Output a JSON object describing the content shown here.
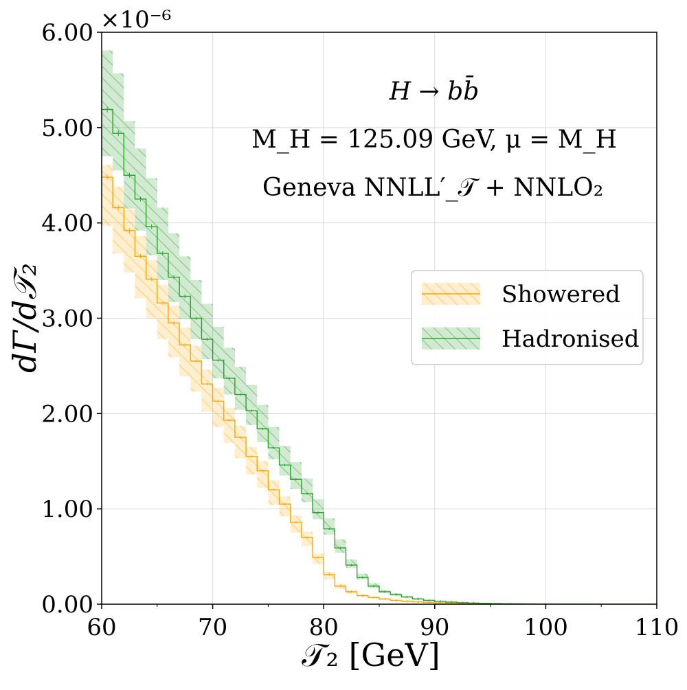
{
  "chart_data": {
    "type": "line",
    "style": "step-histogram-with-uncertainty-bands",
    "xlabel": "𝒯₂   [GeV]",
    "ylabel": "dΓ/d𝒯₂",
    "xlim": [
      60,
      110
    ],
    "ylim": [
      0,
      6.0
    ],
    "xticks": [
      60,
      70,
      80,
      90,
      100,
      110
    ],
    "xtick_labels": [
      "60",
      "70",
      "80",
      "90",
      "100",
      "110"
    ],
    "yticks": [
      0,
      1,
      2,
      3,
      4,
      5,
      6
    ],
    "ytick_labels": [
      "0.00",
      "1.00",
      "2.00",
      "3.00",
      "4.00",
      "5.00",
      "6.00"
    ],
    "y_offset_label": "×10⁻⁶",
    "grid": true,
    "legend_position": "center-right",
    "annotations": [
      "H → bb̄",
      "M_H = 125.09 GeV,  μ = M_H",
      "Geneva   NNLL′_𝒯 + NNLO₂"
    ],
    "bin_edges": [
      60,
      61,
      62,
      63,
      64,
      65,
      66,
      67,
      68,
      69,
      70,
      71,
      72,
      73,
      74,
      75,
      76,
      77,
      78,
      79,
      80,
      81,
      82,
      83,
      84,
      85,
      86,
      87,
      88,
      89,
      90,
      91,
      92,
      93,
      94,
      95,
      96,
      97,
      98,
      99,
      100,
      101,
      102,
      103,
      104,
      105,
      106,
      107,
      108,
      109,
      110
    ],
    "series": [
      {
        "name": "Showered",
        "color": "#FFA500",
        "values": [
          4.48,
          4.16,
          3.92,
          3.65,
          3.41,
          3.16,
          2.95,
          2.72,
          2.55,
          2.31,
          2.13,
          1.93,
          1.75,
          1.55,
          1.4,
          1.2,
          1.05,
          0.86,
          0.7,
          0.49,
          0.31,
          0.19,
          0.13,
          0.09,
          0.07,
          0.055,
          0.04,
          0.03,
          0.025,
          0.02,
          0.015,
          0.012,
          0.01,
          0.008,
          0.006,
          0.005,
          0.004,
          0.003,
          0.002,
          0.002,
          0.001,
          0.001,
          0.001,
          0.0,
          0.0,
          0.0,
          0.0,
          0.0,
          0.0,
          0.0
        ],
        "band_low": [
          3.97,
          3.68,
          3.48,
          3.21,
          3.0,
          2.78,
          2.59,
          2.39,
          2.23,
          2.02,
          1.86,
          1.69,
          1.53,
          1.36,
          1.22,
          1.04,
          0.92,
          0.75,
          0.61,
          0.42,
          0.26,
          0.16,
          0.11,
          0.08,
          0.06,
          0.045,
          0.033,
          0.025,
          0.02,
          0.016,
          0.012,
          0.01,
          0.008,
          0.006,
          0.005,
          0.004,
          0.003,
          0.002,
          0.002,
          0.001,
          0.001,
          0.0,
          0.0,
          0.0,
          0.0,
          0.0,
          0.0,
          0.0,
          0.0,
          0.0
        ],
        "band_high": [
          4.61,
          4.38,
          4.14,
          3.86,
          3.61,
          3.35,
          3.13,
          2.9,
          2.71,
          2.46,
          2.27,
          2.06,
          1.87,
          1.65,
          1.5,
          1.3,
          1.13,
          0.93,
          0.76,
          0.53,
          0.34,
          0.21,
          0.15,
          0.1,
          0.08,
          0.06,
          0.045,
          0.035,
          0.028,
          0.022,
          0.017,
          0.014,
          0.011,
          0.009,
          0.007,
          0.006,
          0.005,
          0.004,
          0.003,
          0.002,
          0.002,
          0.001,
          0.001,
          0.001,
          0.0,
          0.0,
          0.0,
          0.0,
          0.0,
          0.0
        ]
      },
      {
        "name": "Hadronised",
        "color": "#2CA02C",
        "values": [
          5.19,
          4.94,
          4.5,
          4.25,
          3.96,
          3.68,
          3.43,
          3.23,
          3.0,
          2.78,
          2.56,
          2.37,
          2.2,
          2.03,
          1.84,
          1.64,
          1.46,
          1.31,
          1.16,
          0.96,
          0.79,
          0.59,
          0.41,
          0.28,
          0.19,
          0.13,
          0.1,
          0.075,
          0.055,
          0.04,
          0.03,
          0.022,
          0.016,
          0.012,
          0.009,
          0.007,
          0.005,
          0.004,
          0.003,
          0.002,
          0.002,
          0.001,
          0.001,
          0.001,
          0.0,
          0.0,
          0.0,
          0.0,
          0.0,
          0.0
        ],
        "band_low": [
          4.7,
          4.55,
          4.15,
          3.92,
          3.66,
          3.4,
          3.17,
          2.99,
          2.78,
          2.57,
          2.37,
          2.2,
          2.04,
          1.88,
          1.7,
          1.52,
          1.35,
          1.21,
          1.07,
          0.89,
          0.73,
          0.54,
          0.38,
          0.26,
          0.17,
          0.12,
          0.09,
          0.068,
          0.05,
          0.036,
          0.027,
          0.02,
          0.014,
          0.011,
          0.008,
          0.006,
          0.004,
          0.003,
          0.002,
          0.002,
          0.001,
          0.001,
          0.0,
          0.0,
          0.0,
          0.0,
          0.0,
          0.0,
          0.0,
          0.0
        ],
        "band_high": [
          5.81,
          5.57,
          5.07,
          4.78,
          4.47,
          4.16,
          3.89,
          3.65,
          3.4,
          3.15,
          2.91,
          2.69,
          2.49,
          2.3,
          2.09,
          1.86,
          1.66,
          1.49,
          1.32,
          1.1,
          0.9,
          0.68,
          0.47,
          0.32,
          0.22,
          0.15,
          0.115,
          0.085,
          0.063,
          0.046,
          0.034,
          0.025,
          0.018,
          0.014,
          0.01,
          0.008,
          0.006,
          0.005,
          0.003,
          0.002,
          0.002,
          0.001,
          0.001,
          0.001,
          0.0,
          0.0,
          0.0,
          0.0,
          0.0,
          0.0
        ]
      }
    ]
  }
}
